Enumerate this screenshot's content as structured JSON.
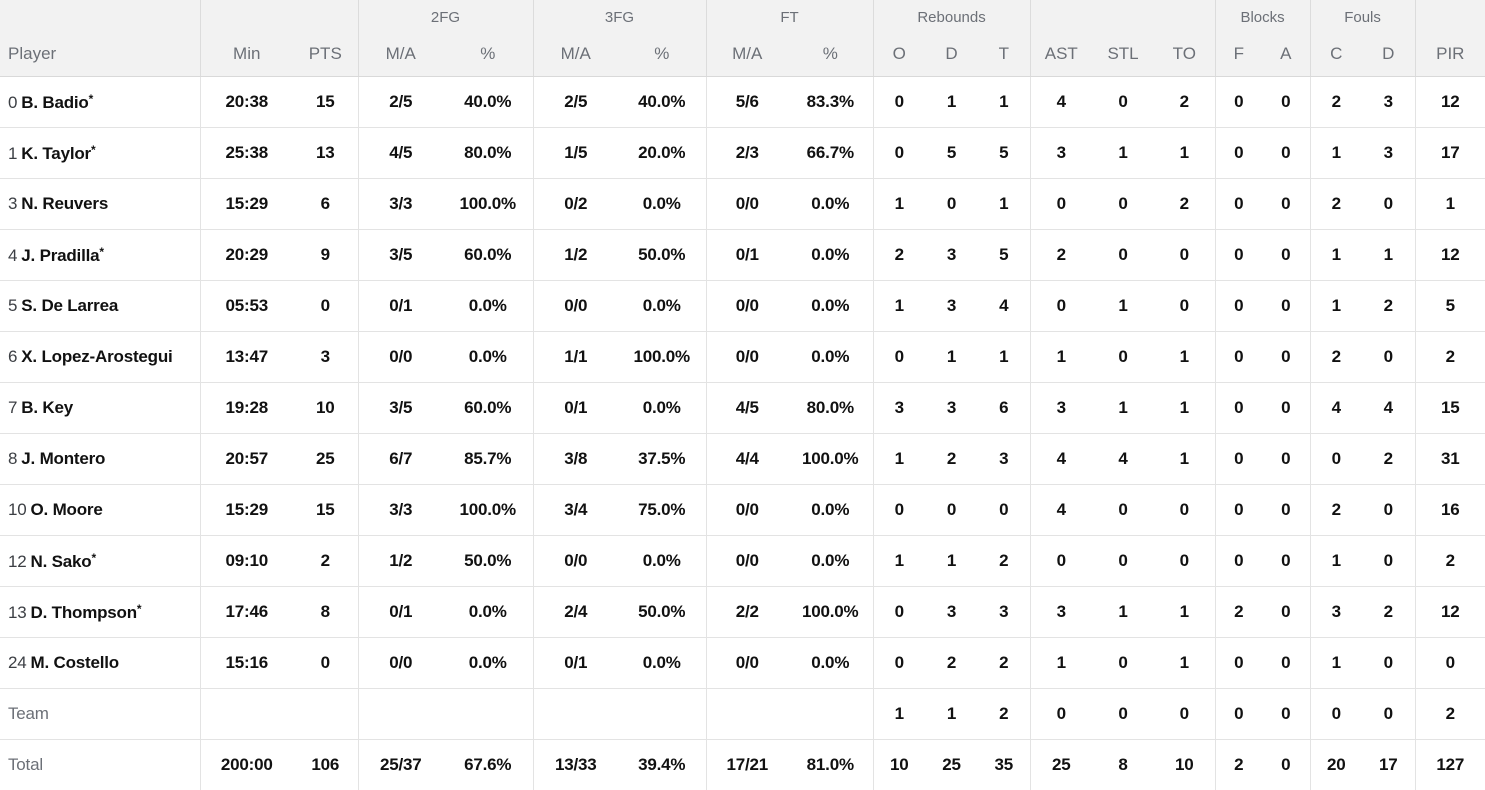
{
  "colors": {
    "header_bg": "#f2f2f2",
    "header_text": "#6c7077",
    "border": "#e3e3e3",
    "data_text": "#111111",
    "muted_text": "#6c7077"
  },
  "table": {
    "groups": [
      {
        "label": ""
      },
      {
        "label": ""
      },
      {
        "label": "2FG"
      },
      {
        "label": "3FG"
      },
      {
        "label": "FT"
      },
      {
        "label": "Rebounds"
      },
      {
        "label": ""
      },
      {
        "label": "Blocks"
      },
      {
        "label": "Fouls"
      },
      {
        "label": ""
      }
    ],
    "columns": [
      "Player",
      "Min",
      "PTS",
      "M/A",
      "%",
      "M/A",
      "%",
      "M/A",
      "%",
      "O",
      "D",
      "T",
      "AST",
      "STL",
      "TO",
      "F",
      "A",
      "C",
      "D",
      "PIR"
    ],
    "rows": [
      {
        "type": "player",
        "number": "0",
        "name": "B. Badio",
        "starter": "*",
        "stats": [
          "20:38",
          "15",
          "2/5",
          "40.0%",
          "2/5",
          "40.0%",
          "5/6",
          "83.3%",
          "0",
          "1",
          "1",
          "4",
          "0",
          "2",
          "0",
          "0",
          "2",
          "3",
          "12"
        ]
      },
      {
        "type": "player",
        "number": "1",
        "name": "K. Taylor",
        "starter": "*",
        "stats": [
          "25:38",
          "13",
          "4/5",
          "80.0%",
          "1/5",
          "20.0%",
          "2/3",
          "66.7%",
          "0",
          "5",
          "5",
          "3",
          "1",
          "1",
          "0",
          "0",
          "1",
          "3",
          "17"
        ]
      },
      {
        "type": "player",
        "number": "3",
        "name": "N. Reuvers",
        "starter": "",
        "stats": [
          "15:29",
          "6",
          "3/3",
          "100.0%",
          "0/2",
          "0.0%",
          "0/0",
          "0.0%",
          "1",
          "0",
          "1",
          "0",
          "0",
          "2",
          "0",
          "0",
          "2",
          "0",
          "1"
        ]
      },
      {
        "type": "player",
        "number": "4",
        "name": "J. Pradilla",
        "starter": "*",
        "stats": [
          "20:29",
          "9",
          "3/5",
          "60.0%",
          "1/2",
          "50.0%",
          "0/1",
          "0.0%",
          "2",
          "3",
          "5",
          "2",
          "0",
          "0",
          "0",
          "0",
          "1",
          "1",
          "12"
        ]
      },
      {
        "type": "player",
        "number": "5",
        "name": "S. De Larrea",
        "starter": "",
        "stats": [
          "05:53",
          "0",
          "0/1",
          "0.0%",
          "0/0",
          "0.0%",
          "0/0",
          "0.0%",
          "1",
          "3",
          "4",
          "0",
          "1",
          "0",
          "0",
          "0",
          "1",
          "2",
          "5"
        ]
      },
      {
        "type": "player",
        "number": "6",
        "name": "X. Lopez-Arostegui",
        "starter": "",
        "stats": [
          "13:47",
          "3",
          "0/0",
          "0.0%",
          "1/1",
          "100.0%",
          "0/0",
          "0.0%",
          "0",
          "1",
          "1",
          "1",
          "0",
          "1",
          "0",
          "0",
          "2",
          "0",
          "2"
        ]
      },
      {
        "type": "player",
        "number": "7",
        "name": "B. Key",
        "starter": "",
        "stats": [
          "19:28",
          "10",
          "3/5",
          "60.0%",
          "0/1",
          "0.0%",
          "4/5",
          "80.0%",
          "3",
          "3",
          "6",
          "3",
          "1",
          "1",
          "0",
          "0",
          "4",
          "4",
          "15"
        ]
      },
      {
        "type": "player",
        "number": "8",
        "name": "J. Montero",
        "starter": "",
        "stats": [
          "20:57",
          "25",
          "6/7",
          "85.7%",
          "3/8",
          "37.5%",
          "4/4",
          "100.0%",
          "1",
          "2",
          "3",
          "4",
          "4",
          "1",
          "0",
          "0",
          "0",
          "2",
          "31"
        ]
      },
      {
        "type": "player",
        "number": "10",
        "name": "O. Moore",
        "starter": "",
        "stats": [
          "15:29",
          "15",
          "3/3",
          "100.0%",
          "3/4",
          "75.0%",
          "0/0",
          "0.0%",
          "0",
          "0",
          "0",
          "4",
          "0",
          "0",
          "0",
          "0",
          "2",
          "0",
          "16"
        ]
      },
      {
        "type": "player",
        "number": "12",
        "name": "N. Sako",
        "starter": "*",
        "stats": [
          "09:10",
          "2",
          "1/2",
          "50.0%",
          "0/0",
          "0.0%",
          "0/0",
          "0.0%",
          "1",
          "1",
          "2",
          "0",
          "0",
          "0",
          "0",
          "0",
          "1",
          "0",
          "2"
        ]
      },
      {
        "type": "player",
        "number": "13",
        "name": "D. Thompson",
        "starter": "*",
        "stats": [
          "17:46",
          "8",
          "0/1",
          "0.0%",
          "2/4",
          "50.0%",
          "2/2",
          "100.0%",
          "0",
          "3",
          "3",
          "3",
          "1",
          "1",
          "2",
          "0",
          "3",
          "2",
          "12"
        ]
      },
      {
        "type": "player",
        "number": "24",
        "name": "M. Costello",
        "starter": "",
        "stats": [
          "15:16",
          "0",
          "0/0",
          "0.0%",
          "0/1",
          "0.0%",
          "0/0",
          "0.0%",
          "0",
          "2",
          "2",
          "1",
          "0",
          "1",
          "0",
          "0",
          "1",
          "0",
          "0"
        ]
      },
      {
        "type": "summary",
        "number": "",
        "name": "Team",
        "starter": "",
        "stats": [
          "",
          "",
          "",
          "",
          "",
          "",
          "",
          "",
          "1",
          "1",
          "2",
          "0",
          "0",
          "0",
          "0",
          "0",
          "0",
          "0",
          "2"
        ]
      },
      {
        "type": "summary",
        "number": "",
        "name": "Total",
        "starter": "",
        "stats": [
          "200:00",
          "106",
          "25/37",
          "67.6%",
          "13/33",
          "39.4%",
          "17/21",
          "81.0%",
          "10",
          "25",
          "35",
          "25",
          "8",
          "10",
          "2",
          "0",
          "20",
          "17",
          "127"
        ]
      }
    ]
  }
}
